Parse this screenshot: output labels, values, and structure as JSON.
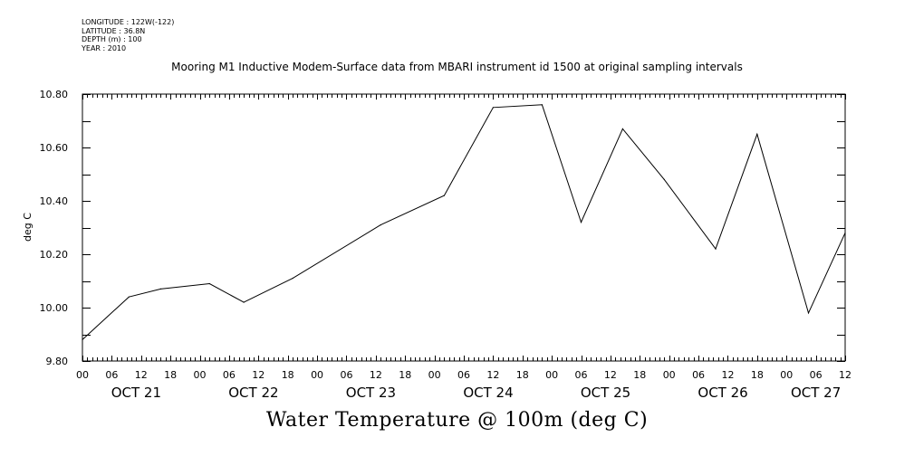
{
  "header": {
    "longitude": "LONGITUDE : 122W(-122)",
    "latitude": "LATITUDE : 36.8N",
    "depth": "DEPTH (m) : 100",
    "year": "YEAR : 2010"
  },
  "chart_data": {
    "type": "line",
    "title": "Mooring M1 Inductive Modem-Surface data from MBARI instrument id 1500 at original sampling intervals",
    "xlabel": "Water Temperature @ 100m (deg C)",
    "ylabel": "deg C",
    "x_unit": "hours since OCT 21 00:00",
    "xlim": [
      0,
      156
    ],
    "ylim": [
      9.8,
      10.8
    ],
    "yticks": [
      "9.80",
      "10.00",
      "10.20",
      "10.40",
      "10.60",
      "10.80"
    ],
    "ytick_values": [
      9.8,
      10.0,
      10.2,
      10.4,
      10.6,
      10.8
    ],
    "x_hour_ticks": [
      {
        "h": 0,
        "label": "00"
      },
      {
        "h": 6,
        "label": "06"
      },
      {
        "h": 12,
        "label": "12"
      },
      {
        "h": 18,
        "label": "18"
      },
      {
        "h": 24,
        "label": "00"
      },
      {
        "h": 30,
        "label": "06"
      },
      {
        "h": 36,
        "label": "12"
      },
      {
        "h": 42,
        "label": "18"
      },
      {
        "h": 48,
        "label": "00"
      },
      {
        "h": 54,
        "label": "06"
      },
      {
        "h": 60,
        "label": "12"
      },
      {
        "h": 66,
        "label": "18"
      },
      {
        "h": 72,
        "label": "00"
      },
      {
        "h": 78,
        "label": "06"
      },
      {
        "h": 84,
        "label": "12"
      },
      {
        "h": 90,
        "label": "18"
      },
      {
        "h": 96,
        "label": "00"
      },
      {
        "h": 102,
        "label": "06"
      },
      {
        "h": 108,
        "label": "12"
      },
      {
        "h": 114,
        "label": "18"
      },
      {
        "h": 120,
        "label": "00"
      },
      {
        "h": 126,
        "label": "06"
      },
      {
        "h": 132,
        "label": "12"
      },
      {
        "h": 138,
        "label": "18"
      },
      {
        "h": 144,
        "label": "00"
      },
      {
        "h": 150,
        "label": "06"
      },
      {
        "h": 156,
        "label": "12"
      }
    ],
    "x_day_labels": [
      {
        "h": 11,
        "label": "OCT 21"
      },
      {
        "h": 35,
        "label": "OCT 22"
      },
      {
        "h": 59,
        "label": "OCT 23"
      },
      {
        "h": 83,
        "label": "OCT 24"
      },
      {
        "h": 107,
        "label": "OCT 25"
      },
      {
        "h": 131,
        "label": "OCT 26"
      },
      {
        "h": 150,
        "label": "OCT 27"
      }
    ],
    "series": [
      {
        "x": [
          0,
          9.5,
          16,
          26,
          33,
          43,
          61,
          74,
          84,
          94,
          102,
          110.5,
          119,
          129.5,
          138,
          148.5,
          156
        ],
        "values": [
          9.88,
          10.04,
          10.07,
          10.09,
          10.02,
          10.11,
          10.31,
          10.42,
          10.75,
          10.76,
          10.32,
          10.67,
          10.48,
          10.22,
          10.65,
          9.98,
          10.28
        ]
      }
    ]
  }
}
